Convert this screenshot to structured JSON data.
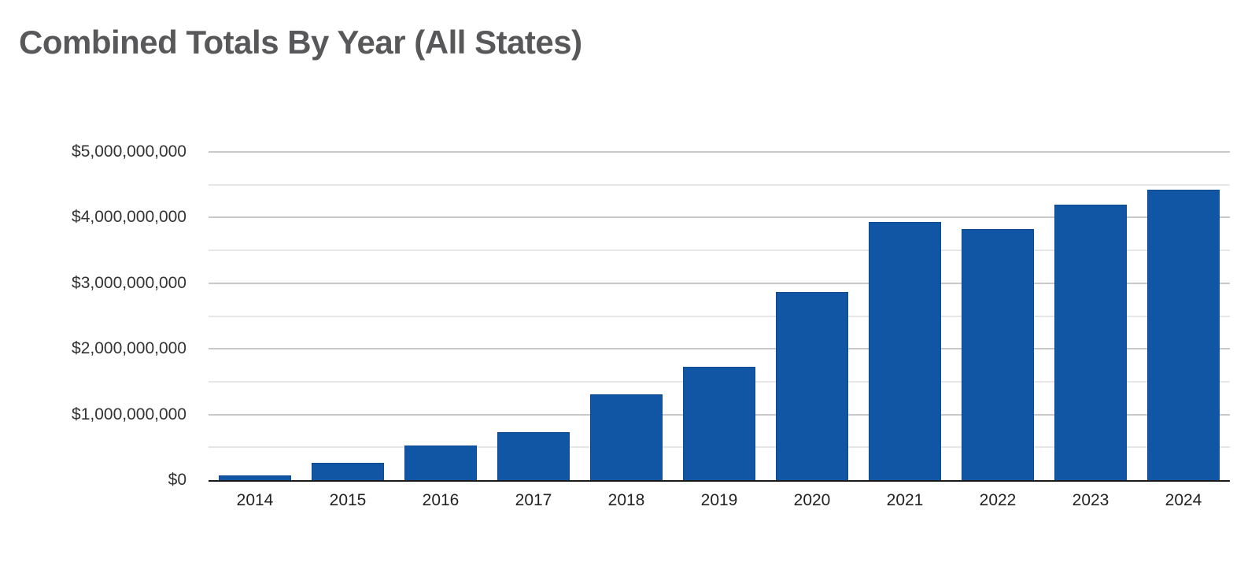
{
  "page": {
    "background": "#ffffff"
  },
  "header": {
    "title": "Combined Totals By Year (All States)"
  },
  "chart_data": {
    "type": "bar",
    "title": "Combined Totals By Year (All States)",
    "categories": [
      "2014",
      "2015",
      "2016",
      "2017",
      "2018",
      "2019",
      "2020",
      "2021",
      "2022",
      "2023",
      "2024"
    ],
    "values": [
      75000000,
      265000000,
      530000000,
      730000000,
      1310000000,
      1730000000,
      2860000000,
      3930000000,
      3820000000,
      4200000000,
      4430000000
    ],
    "xlabel": "",
    "ylabel": "",
    "ylim": [
      0,
      5000000000
    ],
    "y_major_step": 1000000000,
    "y_minor_step": 500000000,
    "y_tick_labels": [
      "$0",
      "$1,000,000,000",
      "$2,000,000,000",
      "$3,000,000,000",
      "$4,000,000,000",
      "$5,000,000,000"
    ],
    "grid": true,
    "legend": "none",
    "colors": {
      "bar_fill": "#1156a4",
      "bar_stroke": "#0d4a92",
      "title_text": "#58585a",
      "tick_text": "#333333",
      "axis_line": "#1a1a1a",
      "grid_major": "#c9c9c9",
      "grid_minor": "#e7e7e7"
    }
  }
}
